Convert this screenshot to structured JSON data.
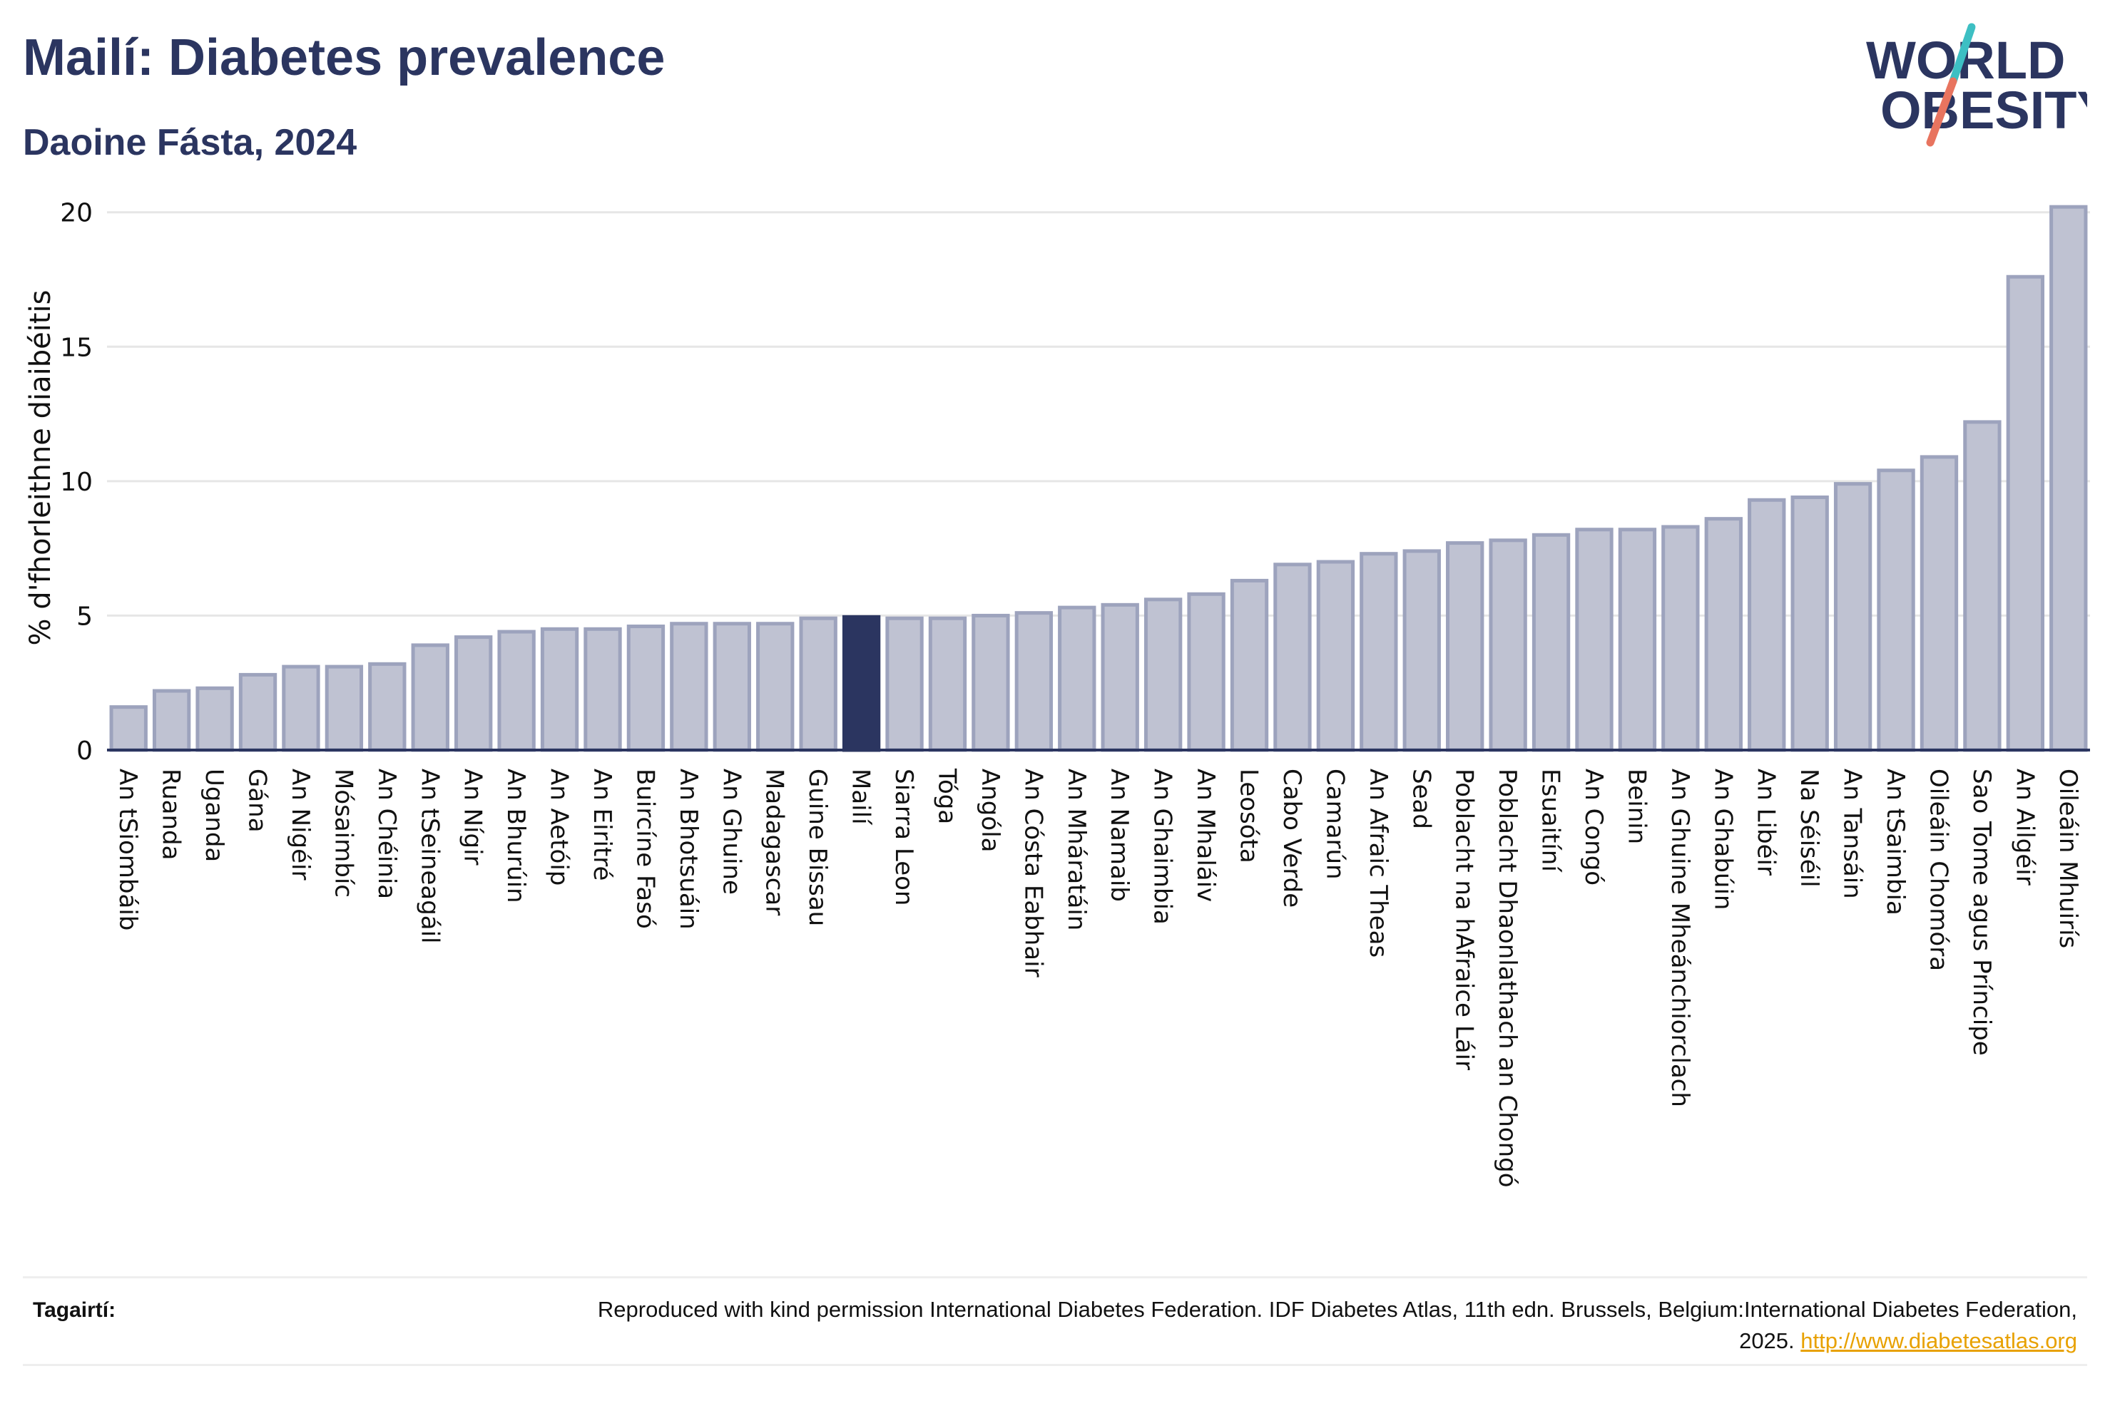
{
  "header": {
    "title": "Mailí: Diabetes prevalence",
    "subtitle": "Daoine Fásta, 2024"
  },
  "logo": {
    "line1": "WORLD",
    "line2": "OBESITY",
    "colors": {
      "navy": "#2b3560",
      "teal": "#3dbfc3",
      "coral": "#e8745f"
    }
  },
  "colors": {
    "bar": "#bfc2d2",
    "bar_edge": "#9da3bd",
    "highlight": "#2b3560",
    "grid": "#e6e6e6",
    "axis": "#2b3560"
  },
  "chart_data": {
    "type": "bar",
    "title": "Mailí: Diabetes prevalence",
    "subtitle": "Daoine Fásta, 2024",
    "ylabel": "% d'fhorleithne diaibéitis",
    "xlabel": "",
    "ylim": [
      0,
      21
    ],
    "yticks": [
      0,
      5,
      10,
      15,
      20
    ],
    "grid": true,
    "highlight": "Mailí",
    "categories": [
      "An tSiombáib",
      "Ruanda",
      "Uganda",
      "Gána",
      "An Nigéir",
      "Mósaimbíc",
      "An Chéinia",
      "An tSeineagáil",
      "An Nígir",
      "An Bhurúin",
      "An Aetóip",
      "An Eiritré",
      "Buircíne Fasó",
      "An Bhotsuáin",
      "An Ghuine",
      "Madagascar",
      "Guine Bissau",
      "Mailí",
      "Siarra Leon",
      "Tóga",
      "Angóla",
      "An Cósta Eabhair",
      "An Mháratáin",
      "An Namaib",
      "An Ghaimbia",
      "An Mhaláiv",
      "Leosóta",
      "Cabo Verde",
      "Camarún",
      "An Afraic Theas",
      "Sead",
      "Poblacht na hAfraice Láir",
      "Poblacht Dhaonlathach an Chongó",
      "Esuaitíní",
      "An Congó",
      "Beinin",
      "An Ghuine Mheánchiorclach",
      "An Ghabúin",
      "An Libéir",
      "Na Séiséil",
      "An Tansáin",
      "An tSaimbia",
      "Oileáin Chomóra",
      "Sao Tome agus Príncipe",
      "An Ailgéir",
      "Oileáin Mhuirís"
    ],
    "values": [
      1.6,
      2.2,
      2.3,
      2.8,
      3.1,
      3.1,
      3.2,
      3.9,
      4.2,
      4.4,
      4.5,
      4.5,
      4.6,
      4.7,
      4.7,
      4.7,
      4.9,
      4.95,
      4.9,
      4.9,
      5.0,
      5.1,
      5.3,
      5.4,
      5.6,
      5.8,
      6.3,
      6.9,
      7.0,
      7.3,
      7.4,
      7.7,
      7.8,
      8.0,
      8.2,
      8.2,
      8.3,
      8.6,
      9.3,
      9.4,
      9.9,
      10.4,
      10.9,
      12.2,
      17.6,
      20.2
    ]
  },
  "footer": {
    "label": "Tagairtí:",
    "text": "Reproduced with kind permission International Diabetes Federation. IDF Diabetes Atlas, 11th edn. Brussels, Belgium:International Diabetes Federation, 2025.",
    "link": "http://www.diabetesatlas.org"
  }
}
